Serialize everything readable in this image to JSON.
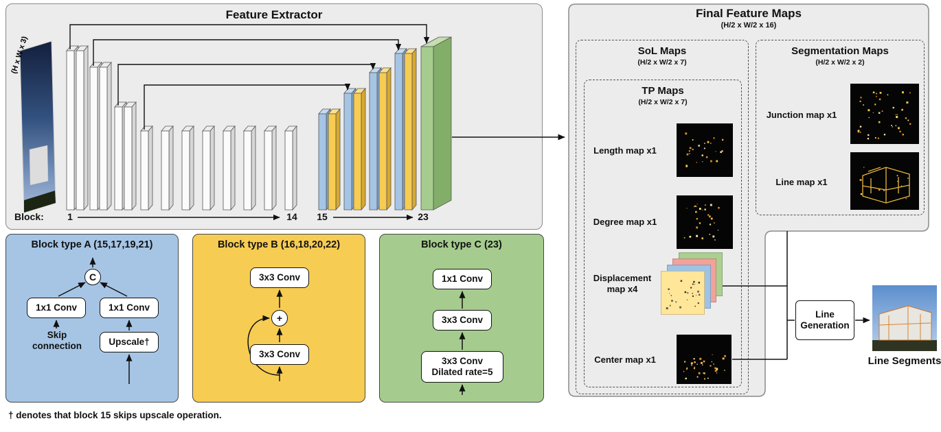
{
  "feature_extractor": {
    "title": "Feature Extractor",
    "input_label": "(H x W x 3)",
    "block_label": "Block:",
    "block_first": "1",
    "block_14": "14",
    "block_15": "15",
    "block_23": "23"
  },
  "block_type_a": {
    "title": "Block type A (15,17,19,21)",
    "concat": "C",
    "conv_left": "1x1 Conv",
    "conv_right": "1x1 Conv",
    "skip_line1": "Skip",
    "skip_line2": "connection",
    "upscale": "Upscale†"
  },
  "block_type_b": {
    "title": "Block type B (16,18,20,22)",
    "conv_top": "3x3 Conv",
    "plus": "+",
    "conv_bottom": "3x3 Conv"
  },
  "block_type_c": {
    "title": "Block type C (23)",
    "conv1": "1x1 Conv",
    "conv2": "3x3 Conv",
    "conv3_line1": "3x3 Conv",
    "conv3_line2": "Dilated rate=5"
  },
  "final_maps": {
    "title": "Final Feature Maps",
    "subtitle": "(H/2 x W/2 x 16)",
    "sol": {
      "title": "SoL Maps",
      "subtitle": "(H/2 x W/2 x 7)"
    },
    "tp": {
      "title": "TP Maps",
      "subtitle": "(H/2 x W/2 x 7)",
      "length_label": "Length map x1",
      "degree_label": "Degree map x1",
      "displacement_label": "Displacement map x4",
      "center_label": "Center map x1"
    },
    "segmentation": {
      "title": "Segmentation Maps",
      "subtitle": "(H/2 x W/2 x 2)",
      "junction_label": "Junction map x1",
      "line_label": "Line map x1"
    }
  },
  "line_generation_label": "Line Generation",
  "line_segments_label": "Line Segments",
  "footnote": "† denotes that block 15 skips upscale operation.",
  "colors": {
    "block_a_blue": "#a6c5e5",
    "block_b_yellow": "#f7cc52",
    "block_c_green": "#a5cc8e",
    "panel_gray": "#ececec",
    "map_dot_orange": "#e8a437"
  }
}
